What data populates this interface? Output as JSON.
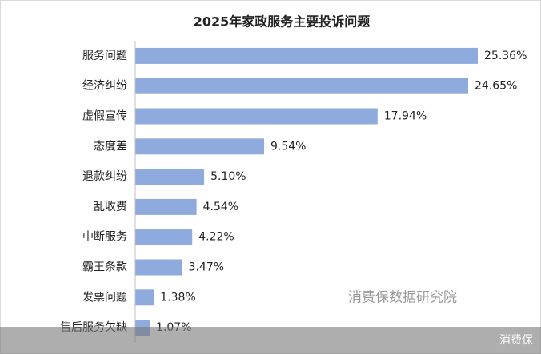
{
  "chart_data": {
    "type": "bar",
    "orientation": "horizontal",
    "title": "2025年家政服务主要投诉问题",
    "categories": [
      "服务问题",
      "经济纠纷",
      "虚假宣传",
      "态度差",
      "退款纠纷",
      "乱收费",
      "中断服务",
      "霸王条款",
      "发票问题",
      "售后服务欠缺"
    ],
    "values": [
      25.36,
      24.65,
      17.94,
      9.54,
      5.1,
      4.54,
      4.22,
      3.47,
      1.38,
      1.07
    ],
    "value_labels": [
      "25.36%",
      "24.65%",
      "17.94%",
      "9.54%",
      "5.10%",
      "4.54%",
      "4.22%",
      "3.47%",
      "1.38%",
      "1.07%"
    ],
    "color": "#8faadc",
    "watermark": "消费保数据研究院",
    "footer": "消费保"
  }
}
